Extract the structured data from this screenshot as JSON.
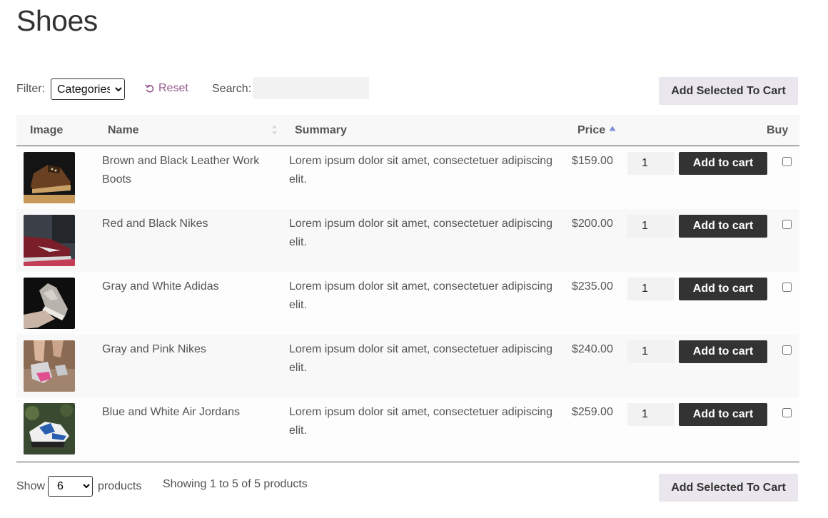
{
  "page": {
    "title": "Shoes"
  },
  "toolbar": {
    "filter_label": "Filter:",
    "filter_select": {
      "selected": "Categories",
      "options": [
        "Categories"
      ]
    },
    "reset_label": "Reset",
    "search_label": "Search:",
    "search_value": "",
    "add_selected_label": "Add Selected To Cart"
  },
  "table": {
    "headers": {
      "image": "Image",
      "name": "Name",
      "summary": "Summary",
      "price": "Price",
      "buy": "Buy"
    },
    "sort": {
      "column": "price",
      "direction": "ascending"
    },
    "add_to_cart_label": "Add to cart",
    "rows": [
      {
        "name": "Brown and Black Leather Work Boots",
        "summary": "Lorem ipsum dolor sit amet, consectetuer adipiscing elit.",
        "price": "$159.00",
        "qty": "1",
        "thumb_icon": "work-boot-icon",
        "selected": false
      },
      {
        "name": "Red and Black Nikes",
        "summary": "Lorem ipsum dolor sit amet, consectetuer adipiscing elit.",
        "price": "$200.00",
        "qty": "1",
        "thumb_icon": "red-sneaker-icon",
        "selected": false
      },
      {
        "name": "Gray and White Adidas",
        "summary": "Lorem ipsum dolor sit amet, consectetuer adipiscing elit.",
        "price": "$235.00",
        "qty": "1",
        "thumb_icon": "gray-sneaker-icon",
        "selected": false
      },
      {
        "name": "Gray and Pink Nikes",
        "summary": "Lorem ipsum dolor sit amet, consectetuer adipiscing elit.",
        "price": "$240.00",
        "qty": "1",
        "thumb_icon": "pink-sneaker-icon",
        "selected": false
      },
      {
        "name": "Blue and White Air Jordans",
        "summary": "Lorem ipsum dolor sit amet, consectetuer adipiscing elit.",
        "price": "$259.00",
        "qty": "1",
        "thumb_icon": "blue-sneaker-icon",
        "selected": false
      }
    ]
  },
  "footer": {
    "show_label": "Show",
    "show_select": {
      "selected": "6",
      "options": [
        "6"
      ]
    },
    "products_label": "products",
    "showing_text": "Showing 1 to 5 of 5 products",
    "add_selected_label": "Add Selected To Cart"
  },
  "colors": {
    "accent": "#96588a",
    "button_dark": "#333333",
    "button_light": "#e9e6ed",
    "sort_arrow": "#7b8fd6"
  }
}
